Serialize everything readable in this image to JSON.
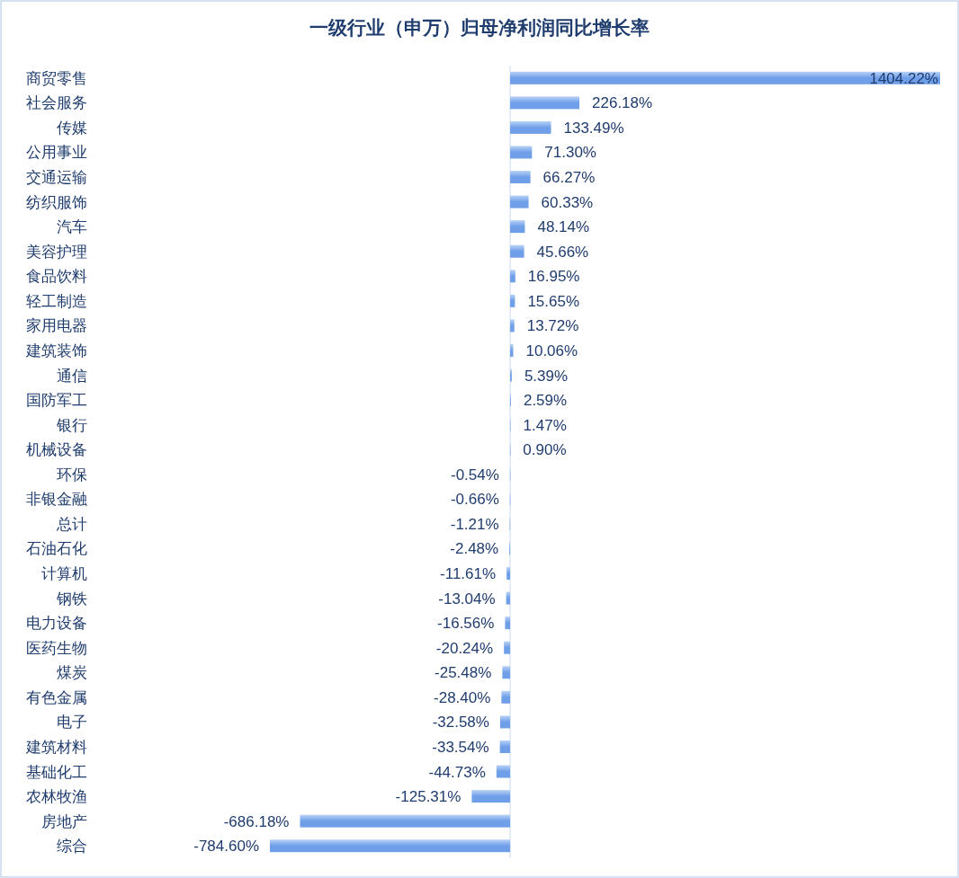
{
  "chart_data": {
    "type": "bar",
    "orientation": "horizontal",
    "title": "一级行业（申万）归母净利润同比增长率",
    "color": "#6f9fe8",
    "categories": [
      "商贸零售",
      "社会服务",
      "传媒",
      "公用事业",
      "交通运输",
      "纺织服饰",
      "汽车",
      "美容护理",
      "食品饮料",
      "轻工制造",
      "家用电器",
      "建筑装饰",
      "通信",
      "国防军工",
      "银行",
      "机械设备",
      "环保",
      "非银金融",
      "总计",
      "石油石化",
      "计算机",
      "钢铁",
      "电力设备",
      "医药生物",
      "煤炭",
      "有色金属",
      "电子",
      "建筑材料",
      "基础化工",
      "农林牧渔",
      "房地产",
      "综合"
    ],
    "values": [
      1404.22,
      226.18,
      133.49,
      71.3,
      66.27,
      60.33,
      48.14,
      45.66,
      16.95,
      15.65,
      13.72,
      10.06,
      5.39,
      2.59,
      1.47,
      0.9,
      -0.54,
      -0.66,
      -1.21,
      -2.48,
      -11.61,
      -13.04,
      -16.56,
      -20.24,
      -25.48,
      -28.4,
      -32.58,
      -33.54,
      -44.73,
      -125.31,
      -686.18,
      -784.6
    ],
    "value_labels": [
      "1404.22%",
      "226.18%",
      "133.49%",
      "71.30%",
      "66.27%",
      "60.33%",
      "48.14%",
      "45.66%",
      "16.95%",
      "15.65%",
      "13.72%",
      "10.06%",
      "5.39%",
      "2.59%",
      "1.47%",
      "0.90%",
      "-0.54%",
      "-0.66%",
      "-1.21%",
      "-2.48%",
      "-11.61%",
      "-13.04%",
      "-16.56%",
      "-20.24%",
      "-25.48%",
      "-28.40%",
      "-32.58%",
      "-33.54%",
      "-44.73%",
      "-125.31%",
      "-686.18%",
      "-784.60%"
    ]
  }
}
